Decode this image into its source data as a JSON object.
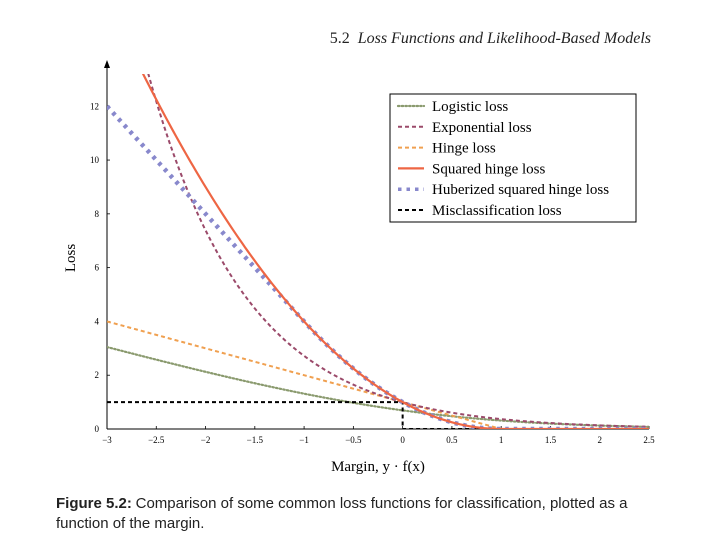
{
  "header": {
    "section_number": "5.2",
    "section_title": "Loss Functions and Likelihood-Based Models"
  },
  "caption": {
    "label": "Figure 5.2:",
    "text": "Comparison of some common loss functions for classification, plotted as a function of the margin."
  },
  "chart_data": {
    "type": "line",
    "xlabel": "Margin, y · f(x)",
    "ylabel": "Loss",
    "xlim": [
      -3,
      2.5
    ],
    "ylim": [
      0,
      13.2
    ],
    "xticks": [
      -3,
      -2.5,
      -2,
      -1.5,
      -1,
      -0.5,
      0,
      0.5,
      1,
      1.5,
      2,
      2.5
    ],
    "xtick_labels": [
      "−3",
      "−2.5",
      "−2",
      "−1.5",
      "−1",
      "−0.5",
      "0",
      "0.5",
      "1",
      "1.5",
      "2",
      "2.5"
    ],
    "yticks": [
      0,
      2,
      4,
      6,
      8,
      10,
      12
    ],
    "ytick_labels": [
      "0",
      "2",
      "4",
      "6",
      "8",
      "10",
      "12"
    ],
    "grid": false,
    "legend_position": "top-right",
    "x": [
      -3,
      -2.5,
      -2,
      -1.5,
      -1,
      -0.5,
      0,
      0.5,
      1,
      1.5,
      2,
      2.5
    ],
    "series": [
      {
        "name": "Logistic loss",
        "color": "#8a9a6e",
        "dash": "dotted",
        "values": [
          3.05,
          2.58,
          2.13,
          1.7,
          1.31,
          0.97,
          0.69,
          0.47,
          0.31,
          0.2,
          0.13,
          0.08
        ]
      },
      {
        "name": "Exponential loss",
        "color": "#9b4a6a",
        "dash": "dashed",
        "values": [
          20.09,
          12.18,
          7.39,
          4.48,
          2.72,
          1.65,
          1.0,
          0.61,
          0.37,
          0.22,
          0.14,
          0.08
        ]
      },
      {
        "name": "Hinge loss",
        "color": "#f0a050",
        "dash": "dashed",
        "values": [
          4.0,
          3.5,
          3.0,
          2.5,
          2.0,
          1.5,
          1.0,
          0.5,
          0,
          0,
          0,
          0
        ]
      },
      {
        "name": "Squared hinge loss",
        "color": "#ee6644",
        "dash": "solid",
        "values": [
          16.0,
          12.25,
          9.0,
          6.25,
          4.0,
          2.25,
          1.0,
          0.25,
          0,
          0,
          0,
          0
        ]
      },
      {
        "name": "Huberized squared hinge loss",
        "color": "#8888cc",
        "dash": "heavy-dotted",
        "values": [
          12.0,
          10.0,
          8.0,
          6.0,
          4.0,
          2.25,
          1.0,
          0.25,
          0,
          0,
          0,
          0
        ]
      },
      {
        "name": "Misclassification loss",
        "color": "#000000",
        "dash": "dashed",
        "values": [
          1,
          1,
          1,
          1,
          1,
          1,
          1,
          0,
          0,
          0,
          0,
          0
        ]
      }
    ]
  }
}
